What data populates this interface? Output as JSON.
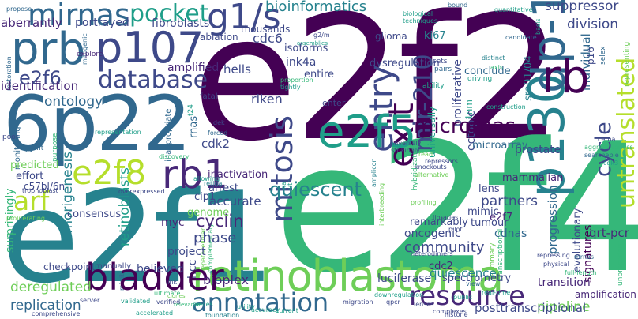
{
  "words": {
    "e2f2": "e2f2",
    "e2f4": "e2f4",
    "e2f1": "e2f1",
    "p22": "6p22",
    "retinoblastoma": "retinoblastoma",
    "p130": "p130",
    "dp1": "dp-1",
    "rb": "rb",
    "prb": "prb",
    "p107": "p107",
    "mirnas": "mirnas",
    "pocket": "pocket",
    "g1s": "g1/s",
    "e2f5": "e2f5",
    "e2f8": "e2f8",
    "rb1": "rb1",
    "bladder": "bladder",
    "annotation": "annotation",
    "resource": "resource",
    "mitosis": "mitosis",
    "exit": "exit",
    "entry": "entry",
    "micrornas": "micrornas",
    "mir210": "mir-210",
    "database": "database",
    "e2f6": "e2f6",
    "arf": "arf",
    "quiescent": "quiescent",
    "cycle": "cycle",
    "untranslated": "untranslated",
    "bioinformatics": "bioinformatics",
    "suppressor": "suppressor",
    "division": "division",
    "aberrantly": "aberrantly",
    "portrayed": "portrayed",
    "fibroblasts": "fibroblasts",
    "identification": "identification",
    "ontology": "ontology",
    "riken": "riken",
    "cdk2": "cdk2",
    "phase": "phase",
    "cyclin": "cyclin",
    "myc": "myc",
    "community": "community",
    "luciferase": "luciferase",
    "bioplex": "bioplex",
    "replication": "replication",
    "deregulated": "deregulated",
    "pipeline": "pipeline",
    "inactivation": "inactivation",
    "quiescence": "quiescence",
    "mammalian": "mammalian",
    "partners": "partners",
    "oncogenic": "oncogenic",
    "cdnas": "cdnas",
    "ink4a": "ink4a",
    "entire": "entire",
    "hells": "hells",
    "amplified": "amplified",
    "isoforms": "isoforms",
    "cdc6": "cdc6",
    "thousands": "thousands",
    "ablation": "ablation",
    "dysregulation": "dysregulation",
    "proliferative": "proliferative",
    "ki67": "ki67",
    "glioma": "glioma",
    "conclude": "conclude",
    "individual": "individual",
    "p16": "p16",
    "sra0104": "sra01/04",
    "tnm": "tnm",
    "ectopic": "ectopic",
    "prostate": "prostate",
    "microarray": "microarray",
    "lens": "lens",
    "mimic": "mimic",
    "tumour": "tumour",
    "remarkably": "remarkably",
    "e2f7": "e2f7",
    "cdc2": "cdc2",
    "spectrometry": "spectrometry",
    "transition": "transition",
    "progression": "progression",
    "qrtpcr": "qrt-pcr",
    "evolutionary": "evolutionary",
    "signatures": "signatures",
    "amplification": "amplification",
    "posttranscriptional": "posttranscriptional",
    "genome": "genome",
    "consensus": "consensus",
    "accurate": "accurate",
    "cip1": "cip1",
    "arrest": "arrest",
    "project": "project",
    "believed": "believed",
    "predicted": "predicted",
    "effort": "effort",
    "c57bl6n": "c57bl/6n",
    "retinoblasts": "retinoblasts",
    "tumorigenesis": "tumorigenesis",
    "surprisingly": "surprisingly",
    "checkpoint": "checkpoint",
    "manually": "manually",
    "hcc": "hcc",
    "enter": "enter",
    "fatal": "fatal",
    "rnas": "rnas",
    "universally": "universally",
    "explore": "explore",
    "pairs": "pairs",
    "sets": "sets",
    "ability": "ability",
    "driving": "driving",
    "axis": "axis",
    "distinct": "distinct",
    "candidate": "candidate",
    "quantitative": "quantitative",
    "biological": "biological",
    "techniques": "techniques",
    "bound": "bound",
    "selex": "selex",
    "basis": "basis",
    "representing": "representing",
    "proportion": "proportion",
    "tightly": "tightly",
    "g2m": "g2/m",
    "assemblies": "assemblies",
    "restoration": "restoration",
    "mitogenic": "mitogenic",
    "propose": "propose",
    "poor": "poor",
    "pymt": "pymt",
    "monitoring": "monitoring",
    "purpose": "purpose",
    "representation": "representation",
    "inappropriate": "inappropriate",
    "discovery": "discovery",
    "dek": "dek",
    "forced": "forced",
    "t24": "t24",
    "construction": "construction",
    "cerna": "cerna",
    "aggressiveness": "aggressiveness",
    "searchable": "searchable",
    "cdk3": "cdk3",
    "trophoblast": "trophoblast",
    "overexpressed": "overexpressed",
    "allowing": "allowing",
    "retina": "retina",
    "na": "na",
    "utr": "utr",
    "alternative": "alternative",
    "knockouts": "knockouts",
    "repressors": "repressors",
    "strikingly": "strikingly",
    "inversely": "inversely",
    "read": "read",
    "amplicon": "amplicon",
    "hybridization": "hybridization",
    "interbreeding": "interbreeding",
    "profiling": "profiling",
    "libraries": "libraries",
    "pilot": "pilot",
    "heterodimers": "heterodimers",
    "view": "view",
    "realtime": "real-time",
    "summary": "summary",
    "transcriptional": "transcriptional",
    "physical": "physical",
    "repressing": "repressing",
    "mrnas": "mrnas",
    "fulllength": "full-length",
    "unprecedented": "unprecedented",
    "link": "link",
    "ultimate": "ultimate",
    "complementary": "complementary",
    "hepatocellular": "hepatocellular",
    "server": "server",
    "mirdb": "mirdb",
    "validated": "validated",
    "verified": "verified",
    "clones": "clones",
    "relevance": "relevance",
    "migration": "migration",
    "downregulation": "downregulation",
    "qpcr": "qpcr",
    "public": "public",
    "utility": "utility",
    "accuracy": "accuracy",
    "current": "current",
    "lenses": "lenses",
    "complexes": "complexes",
    "histone": "histone",
    "foundation": "foundation",
    "accelerated": "accelerated",
    "comprehensive": "comprehensive",
    "pieces": "pieces",
    "proliferating": "proliferating"
  }
}
